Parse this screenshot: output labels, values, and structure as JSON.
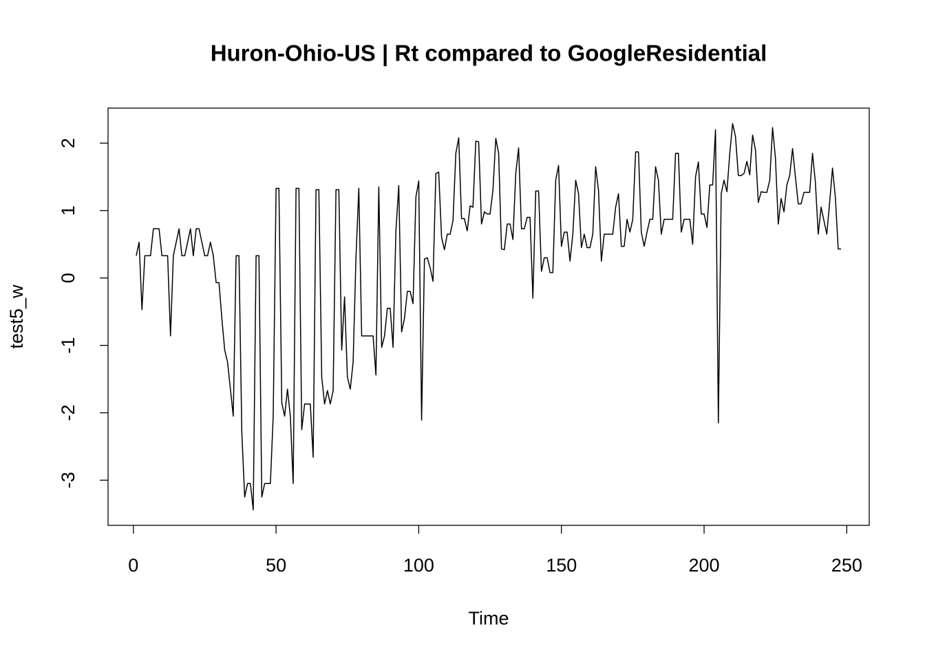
{
  "chart_data": {
    "type": "line",
    "title": "Huron-Ohio-US | Rt compared to GoogleResidential",
    "xlabel": "Time",
    "ylabel": "test5_w",
    "x": [
      1,
      2,
      3,
      4,
      5,
      6,
      7,
      8,
      9,
      10,
      11,
      12,
      13,
      14,
      15,
      16,
      17,
      18,
      19,
      20,
      21,
      22,
      23,
      24,
      25,
      26,
      27,
      28,
      29,
      30,
      31,
      32,
      33,
      34,
      35,
      36,
      37,
      38,
      39,
      40,
      41,
      42,
      43,
      44,
      45,
      46,
      47,
      48,
      49,
      50,
      51,
      52,
      53,
      54,
      55,
      56,
      57,
      58,
      59,
      60,
      61,
      62,
      63,
      64,
      65,
      66,
      67,
      68,
      69,
      70,
      71,
      72,
      73,
      74,
      75,
      76,
      77,
      78,
      79,
      80,
      81,
      82,
      83,
      84,
      85,
      86,
      87,
      88,
      89,
      90,
      91,
      92,
      93,
      94,
      95,
      96,
      97,
      98,
      99,
      100,
      101,
      102,
      103,
      104,
      105,
      106,
      107,
      108,
      109,
      110,
      111,
      112,
      113,
      114,
      115,
      116,
      117,
      118,
      119,
      120,
      121,
      122,
      123,
      124,
      125,
      126,
      127,
      128,
      129,
      130,
      131,
      132,
      133,
      134,
      135,
      136,
      137,
      138,
      139,
      140,
      141,
      142,
      143,
      144,
      145,
      146,
      147,
      148,
      149,
      150,
      151,
      152,
      153,
      154,
      155,
      156,
      157,
      158,
      159,
      160,
      161,
      162,
      163,
      164,
      165,
      166,
      167,
      168,
      169,
      170,
      171,
      172,
      173,
      174,
      175,
      176,
      177,
      178,
      179,
      180,
      181,
      182,
      183,
      184,
      185,
      186,
      187,
      188,
      189,
      190,
      191,
      192,
      193,
      194,
      195,
      196,
      197,
      198,
      199,
      200,
      201,
      202,
      203,
      204,
      205,
      206,
      207,
      208,
      209,
      210,
      211,
      212,
      213,
      214,
      215,
      216,
      217,
      218,
      219,
      220,
      221,
      222,
      223,
      224,
      225,
      226,
      227,
      228,
      229,
      230,
      231,
      232,
      233,
      234,
      235,
      236,
      237,
      238,
      239,
      240,
      241,
      242,
      243,
      244,
      245,
      246,
      247,
      248
    ],
    "values": [
      0.33,
      0.53,
      -0.47,
      0.33,
      0.33,
      0.33,
      0.73,
      0.73,
      0.73,
      0.33,
      0.33,
      0.33,
      -0.86,
      0.33,
      0.53,
      0.73,
      0.33,
      0.33,
      0.53,
      0.73,
      0.33,
      0.73,
      0.73,
      0.53,
      0.33,
      0.33,
      0.53,
      0.33,
      -0.07,
      -0.07,
      -0.6,
      -1.07,
      -1.25,
      -1.65,
      -2.05,
      0.33,
      0.33,
      -2.3,
      -3.25,
      -3.05,
      -3.05,
      -3.44,
      0.33,
      0.33,
      -3.25,
      -3.05,
      -3.05,
      -3.05,
      -2.05,
      1.33,
      1.33,
      -1.85,
      -2.05,
      -1.65,
      -2.05,
      -3.05,
      1.33,
      1.33,
      -2.25,
      -1.87,
      -1.87,
      -1.87,
      -2.66,
      1.31,
      1.31,
      -1.47,
      -1.87,
      -1.67,
      -1.87,
      -1.67,
      1.31,
      1.31,
      -1.07,
      -0.28,
      -1.47,
      -1.65,
      -1.25,
      0.3,
      1.33,
      -0.86,
      -0.86,
      -0.86,
      -0.86,
      -0.86,
      -1.44,
      1.35,
      -1.03,
      -0.86,
      -0.45,
      -0.45,
      -1.03,
      0.7,
      1.37,
      -0.8,
      -0.6,
      -0.2,
      -0.2,
      -0.38,
      1.2,
      1.44,
      -2.11,
      0.28,
      0.3,
      0.15,
      -0.05,
      1.55,
      1.57,
      0.6,
      0.42,
      0.65,
      0.65,
      0.85,
      1.85,
      2.08,
      0.88,
      0.88,
      0.7,
      1.07,
      1.05,
      2.03,
      2.02,
      0.8,
      0.98,
      0.95,
      0.95,
      1.3,
      2.07,
      1.85,
      0.43,
      0.42,
      0.8,
      0.8,
      0.57,
      1.55,
      1.93,
      0.73,
      0.73,
      0.9,
      0.9,
      -0.3,
      1.29,
      1.29,
      0.1,
      0.3,
      0.3,
      0.08,
      0.08,
      1.45,
      1.67,
      0.47,
      0.68,
      0.68,
      0.25,
      0.65,
      1.45,
      1.25,
      0.45,
      0.65,
      0.45,
      0.45,
      0.65,
      1.65,
      1.3,
      0.25,
      0.65,
      0.65,
      0.65,
      0.65,
      1.05,
      1.25,
      0.47,
      0.47,
      0.87,
      0.68,
      0.87,
      1.87,
      1.87,
      0.68,
      0.47,
      0.68,
      0.87,
      0.87,
      1.65,
      1.45,
      0.65,
      0.87,
      0.87,
      0.87,
      0.87,
      1.85,
      1.85,
      0.68,
      0.87,
      0.87,
      0.87,
      0.5,
      1.5,
      1.72,
      0.95,
      0.95,
      0.75,
      1.38,
      1.38,
      2.2,
      -2.15,
      1.25,
      1.45,
      1.28,
      1.85,
      2.29,
      2.1,
      1.52,
      1.52,
      1.55,
      1.73,
      1.53,
      2.12,
      1.9,
      1.12,
      1.28,
      1.27,
      1.27,
      1.45,
      2.23,
      1.78,
      0.8,
      1.18,
      0.98,
      1.38,
      1.52,
      1.92,
      1.5,
      1.1,
      1.1,
      1.27,
      1.27,
      1.27,
      1.85,
      1.42,
      0.65,
      1.05,
      0.85,
      0.65,
      1.12,
      1.63,
      1.2,
      0.43,
      0.43
    ],
    "color": "#000000",
    "xlim": [
      -8.88,
      257.88
    ],
    "xticks": [
      0,
      50,
      100,
      150,
      200,
      250
    ],
    "ylim": [
      -3.67,
      2.52
    ],
    "yticks": [
      -3,
      -2,
      -1,
      0,
      1,
      2
    ],
    "grid": false
  }
}
